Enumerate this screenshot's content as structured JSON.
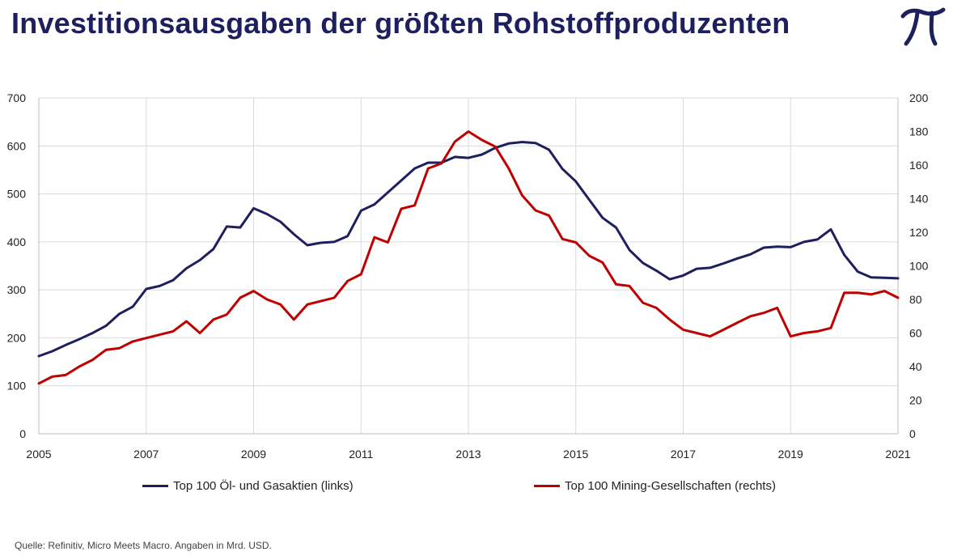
{
  "header": {
    "title": "Investitionsausgaben der größten Rohstoffproduzenten",
    "logo_icon": "pi-logo-icon"
  },
  "footer": {
    "source": "Quelle: Refinitiv, Micro Meets Macro. Angaben in Mrd. USD."
  },
  "colors": {
    "title": "#1e1f5e",
    "oil": "#1e1f5e",
    "mining": "#c00000",
    "grid": "#d9d9d9"
  },
  "chart_data": {
    "type": "line",
    "title": "Investitionsausgaben der größten Rohstoffproduzenten",
    "xlim": [
      2005,
      2021
    ],
    "ylim_left": [
      0,
      700
    ],
    "ylim_right": [
      0,
      200
    ],
    "x_ticks": [
      "2005",
      "2007",
      "2009",
      "2011",
      "2013",
      "2015",
      "2017",
      "2019",
      "2021"
    ],
    "y_ticks_left": [
      "0",
      "100",
      "200",
      "300",
      "400",
      "500",
      "600",
      "700"
    ],
    "y_ticks_right": [
      "0",
      "20",
      "40",
      "60",
      "80",
      "100",
      "120",
      "140",
      "160",
      "180",
      "200"
    ],
    "grid": true,
    "legend_position": "bottom",
    "series": [
      {
        "name": "Top 100 Öl- und Gasaktien (links)",
        "axis": "left",
        "color": "#1e1f5e",
        "points": [
          [
            2005.0,
            162
          ],
          [
            2005.25,
            172
          ],
          [
            2005.5,
            185
          ],
          [
            2005.75,
            197
          ],
          [
            2006.0,
            210
          ],
          [
            2006.25,
            225
          ],
          [
            2006.5,
            250
          ],
          [
            2006.75,
            265
          ],
          [
            2007.0,
            302
          ],
          [
            2007.25,
            308
          ],
          [
            2007.5,
            320
          ],
          [
            2007.75,
            345
          ],
          [
            2008.0,
            362
          ],
          [
            2008.25,
            385
          ],
          [
            2008.5,
            432
          ],
          [
            2008.75,
            430
          ],
          [
            2009.0,
            470
          ],
          [
            2009.25,
            458
          ],
          [
            2009.5,
            442
          ],
          [
            2009.75,
            416
          ],
          [
            2010.0,
            393
          ],
          [
            2010.25,
            398
          ],
          [
            2010.5,
            400
          ],
          [
            2010.75,
            412
          ],
          [
            2011.0,
            465
          ],
          [
            2011.25,
            478
          ],
          [
            2011.5,
            503
          ],
          [
            2011.75,
            528
          ],
          [
            2012.0,
            553
          ],
          [
            2012.25,
            565
          ],
          [
            2012.5,
            565
          ],
          [
            2012.75,
            577
          ],
          [
            2013.0,
            575
          ],
          [
            2013.25,
            582
          ],
          [
            2013.5,
            596
          ],
          [
            2013.75,
            605
          ],
          [
            2014.0,
            608
          ],
          [
            2014.25,
            606
          ],
          [
            2014.5,
            592
          ],
          [
            2014.75,
            552
          ],
          [
            2015.0,
            526
          ],
          [
            2015.25,
            488
          ],
          [
            2015.5,
            450
          ],
          [
            2015.75,
            430
          ],
          [
            2016.0,
            383
          ],
          [
            2016.25,
            356
          ],
          [
            2016.5,
            340
          ],
          [
            2016.75,
            322
          ],
          [
            2017.0,
            330
          ],
          [
            2017.25,
            344
          ],
          [
            2017.5,
            346
          ],
          [
            2017.75,
            355
          ],
          [
            2018.0,
            365
          ],
          [
            2018.25,
            374
          ],
          [
            2018.5,
            388
          ],
          [
            2018.75,
            390
          ],
          [
            2019.0,
            389
          ],
          [
            2019.25,
            400
          ],
          [
            2019.5,
            405
          ],
          [
            2019.75,
            426
          ],
          [
            2020.0,
            373
          ],
          [
            2020.25,
            338
          ],
          [
            2020.5,
            326
          ],
          [
            2020.75,
            325
          ],
          [
            2021.0,
            324
          ]
        ]
      },
      {
        "name": "Top 100 Mining-Gesellschaften (rechts)",
        "axis": "right",
        "color": "#c00000",
        "points": [
          [
            2005.0,
            30
          ],
          [
            2005.25,
            34
          ],
          [
            2005.5,
            35
          ],
          [
            2005.75,
            40
          ],
          [
            2006.0,
            44
          ],
          [
            2006.25,
            50
          ],
          [
            2006.5,
            51
          ],
          [
            2006.75,
            55
          ],
          [
            2007.0,
            57
          ],
          [
            2007.25,
            59
          ],
          [
            2007.5,
            61
          ],
          [
            2007.75,
            67
          ],
          [
            2008.0,
            60
          ],
          [
            2008.25,
            68
          ],
          [
            2008.5,
            71
          ],
          [
            2008.75,
            81
          ],
          [
            2009.0,
            85
          ],
          [
            2009.25,
            80
          ],
          [
            2009.5,
            77
          ],
          [
            2009.75,
            68
          ],
          [
            2010.0,
            77
          ],
          [
            2010.25,
            79
          ],
          [
            2010.5,
            81
          ],
          [
            2010.75,
            91
          ],
          [
            2011.0,
            95
          ],
          [
            2011.25,
            117
          ],
          [
            2011.5,
            114
          ],
          [
            2011.75,
            134
          ],
          [
            2012.0,
            136
          ],
          [
            2012.25,
            158
          ],
          [
            2012.5,
            161
          ],
          [
            2012.75,
            174
          ],
          [
            2013.0,
            180
          ],
          [
            2013.25,
            175
          ],
          [
            2013.5,
            171
          ],
          [
            2013.75,
            158
          ],
          [
            2014.0,
            142
          ],
          [
            2014.25,
            133
          ],
          [
            2014.5,
            130
          ],
          [
            2014.75,
            116
          ],
          [
            2015.0,
            114
          ],
          [
            2015.25,
            106
          ],
          [
            2015.5,
            102
          ],
          [
            2015.75,
            89
          ],
          [
            2016.0,
            88
          ],
          [
            2016.25,
            78
          ],
          [
            2016.5,
            75
          ],
          [
            2016.75,
            68
          ],
          [
            2017.0,
            62
          ],
          [
            2017.25,
            60
          ],
          [
            2017.5,
            58
          ],
          [
            2017.75,
            62
          ],
          [
            2018.0,
            66
          ],
          [
            2018.25,
            70
          ],
          [
            2018.5,
            72
          ],
          [
            2018.75,
            75
          ],
          [
            2019.0,
            58
          ],
          [
            2019.25,
            60
          ],
          [
            2019.5,
            61
          ],
          [
            2019.75,
            63
          ],
          [
            2020.0,
            84
          ],
          [
            2020.25,
            84
          ],
          [
            2020.5,
            83
          ],
          [
            2020.75,
            85
          ],
          [
            2021.0,
            81
          ]
        ]
      }
    ]
  }
}
